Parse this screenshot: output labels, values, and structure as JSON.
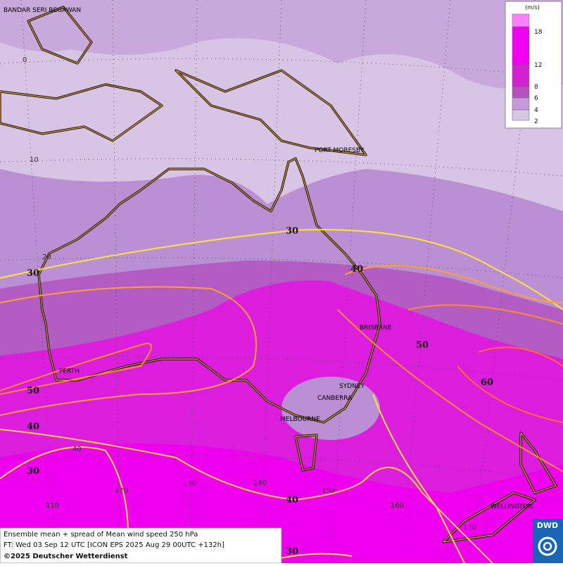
{
  "legend": {
    "unit": "(m/s)",
    "ticks": [
      18,
      12,
      8,
      6,
      4,
      2
    ]
  },
  "cities": [
    "BANDAR SERI BEGAWAN",
    "PORT MORESBY",
    "BRISBANE",
    "PERTH",
    "SYDNEY",
    "CANBERRA",
    "MELBOURNE",
    "WELLINGTON"
  ],
  "grid_labels": [
    "0",
    "10",
    "20",
    "40",
    "110",
    "120",
    "130",
    "140",
    "150",
    "160",
    "170"
  ],
  "contour_labels": [
    30,
    30,
    40,
    50,
    60,
    50,
    40,
    30,
    40,
    30
  ],
  "caption": {
    "line1": "Ensemble mean + spread of Mean wind speed 250 hPa",
    "line2": "FT: Wed 03 Sep 12 UTC [ICON EPS 2025 Aug 29 00UTC +132h]",
    "line3": "©2025 Deutscher Wetterdienst"
  },
  "logo": "DWD"
}
